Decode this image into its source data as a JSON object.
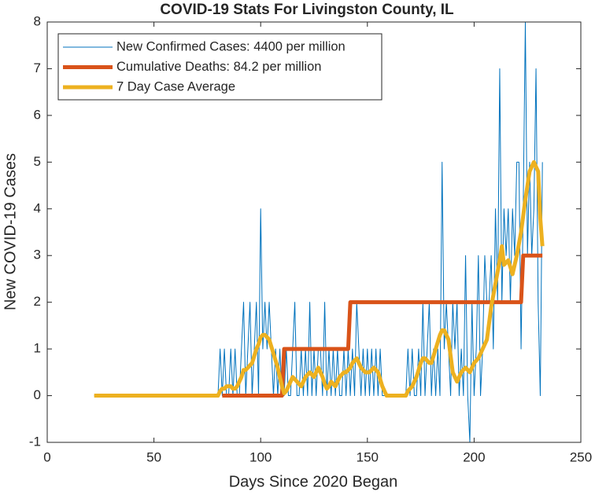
{
  "chart_data": {
    "type": "line",
    "title": "COVID-19 Stats For Livingston County, IL",
    "xlabel": "Days Since 2020 Began",
    "ylabel": "New COVID-19 Cases",
    "xlim": [
      0,
      250
    ],
    "xticks": [
      0,
      50,
      100,
      150,
      200,
      250
    ],
    "ylim": [
      -1,
      8
    ],
    "yticks": [
      -1,
      0,
      1,
      2,
      3,
      4,
      5,
      6,
      7,
      8
    ],
    "grid": false,
    "legend": "upper left",
    "x": [
      22,
      23,
      24,
      25,
      26,
      27,
      28,
      29,
      30,
      31,
      32,
      33,
      34,
      35,
      36,
      37,
      38,
      39,
      40,
      41,
      42,
      43,
      44,
      45,
      46,
      47,
      48,
      49,
      50,
      51,
      52,
      53,
      54,
      55,
      56,
      57,
      58,
      59,
      60,
      61,
      62,
      63,
      64,
      65,
      66,
      67,
      68,
      69,
      70,
      71,
      72,
      73,
      74,
      75,
      76,
      77,
      78,
      79,
      80,
      81,
      82,
      83,
      84,
      85,
      86,
      87,
      88,
      89,
      90,
      91,
      92,
      93,
      94,
      95,
      96,
      97,
      98,
      99,
      100,
      101,
      102,
      103,
      104,
      105,
      106,
      107,
      108,
      109,
      110,
      111,
      112,
      113,
      114,
      115,
      116,
      117,
      118,
      119,
      120,
      121,
      122,
      123,
      124,
      125,
      126,
      127,
      128,
      129,
      130,
      131,
      132,
      133,
      134,
      135,
      136,
      137,
      138,
      139,
      140,
      141,
      142,
      143,
      144,
      145,
      146,
      147,
      148,
      149,
      150,
      151,
      152,
      153,
      154,
      155,
      156,
      157,
      158,
      159,
      160,
      161,
      162,
      163,
      164,
      165,
      166,
      167,
      168,
      169,
      170,
      171,
      172,
      173,
      174,
      175,
      176,
      177,
      178,
      179,
      180,
      181,
      182,
      183,
      184,
      185,
      186,
      187,
      188,
      189,
      190,
      191,
      192,
      193,
      194,
      195,
      196,
      197,
      198,
      199,
      200,
      201,
      202,
      203,
      204,
      205,
      206,
      207,
      208,
      209,
      210,
      211,
      212,
      213,
      214,
      215,
      216,
      217,
      218,
      219,
      220,
      221,
      222,
      223,
      224,
      225,
      226,
      227,
      228,
      229,
      230,
      231,
      232
    ],
    "series": [
      {
        "name": "New Confirmed Cases: 4400 per million",
        "color": "#0072BD",
        "width": 1,
        "values": [
          0,
          0,
          0,
          0,
          0,
          0,
          0,
          0,
          0,
          0,
          0,
          0,
          0,
          0,
          0,
          0,
          0,
          0,
          0,
          0,
          0,
          0,
          0,
          0,
          0,
          0,
          0,
          0,
          0,
          0,
          0,
          0,
          0,
          0,
          0,
          0,
          0,
          0,
          0,
          0,
          0,
          0,
          0,
          0,
          0,
          0,
          0,
          0,
          0,
          0,
          0,
          0,
          0,
          0,
          0,
          0,
          0,
          0,
          0,
          1,
          0,
          1,
          0,
          0,
          1,
          0,
          1,
          0,
          0,
          1,
          2,
          0,
          1,
          2,
          0,
          1,
          2,
          0,
          4,
          1,
          2,
          1,
          2,
          1,
          0,
          1,
          0,
          1,
          0,
          0,
          1,
          0,
          0,
          1,
          2,
          0,
          0,
          1,
          0,
          1,
          0,
          2,
          0,
          1,
          0,
          1,
          1,
          0,
          2,
          0,
          1,
          0,
          1,
          0,
          1,
          0,
          0,
          1,
          0,
          1,
          0,
          1,
          0,
          2,
          1,
          0,
          1,
          0,
          1,
          0,
          1,
          0,
          1,
          0,
          1,
          0,
          0,
          0,
          0,
          0,
          0,
          0,
          0,
          0,
          0,
          0,
          0,
          1,
          0,
          1,
          0,
          0,
          1,
          0,
          2,
          0,
          1,
          2,
          0,
          1,
          0,
          1,
          0,
          5,
          1,
          2,
          1,
          0,
          2,
          1,
          2,
          0,
          1,
          0,
          3,
          0,
          -1,
          2,
          0,
          1,
          3,
          0,
          1,
          3,
          2,
          2,
          3,
          1,
          4,
          2,
          7,
          2,
          4,
          3,
          4,
          2,
          4,
          3,
          5,
          5,
          1,
          4,
          8,
          3,
          5,
          3,
          4,
          7,
          2,
          0,
          5
        ]
      },
      {
        "name": "Cumulative Deaths: 84.2 per million",
        "color": "#D95319",
        "width": 5,
        "values": [
          null,
          null,
          null,
          null,
          null,
          null,
          null,
          null,
          null,
          null,
          null,
          null,
          null,
          null,
          null,
          null,
          null,
          null,
          null,
          null,
          null,
          null,
          null,
          null,
          null,
          null,
          null,
          null,
          null,
          null,
          null,
          null,
          null,
          null,
          null,
          null,
          null,
          null,
          null,
          null,
          null,
          null,
          null,
          null,
          null,
          null,
          null,
          null,
          null,
          null,
          null,
          null,
          null,
          null,
          null,
          null,
          null,
          null,
          null,
          null,
          0,
          0,
          0,
          0,
          0,
          0,
          0,
          0,
          0,
          0,
          0,
          0,
          0,
          0,
          0,
          0,
          0,
          0,
          0,
          0,
          0,
          0,
          0,
          0,
          0,
          0,
          0,
          0,
          0,
          1,
          1,
          1,
          1,
          1,
          1,
          1,
          1,
          1,
          1,
          1,
          1,
          1,
          1,
          1,
          1,
          1,
          1,
          1,
          1,
          1,
          1,
          1,
          1,
          1,
          1,
          1,
          1,
          1,
          1,
          1,
          2,
          2,
          2,
          2,
          2,
          2,
          2,
          2,
          2,
          2,
          2,
          2,
          2,
          2,
          2,
          2,
          2,
          2,
          2,
          2,
          2,
          2,
          2,
          2,
          2,
          2,
          2,
          2,
          2,
          2,
          2,
          2,
          2,
          2,
          2,
          2,
          2,
          2,
          2,
          2,
          2,
          2,
          2,
          2,
          2,
          2,
          2,
          2,
          2,
          2,
          2,
          2,
          2,
          2,
          2,
          2,
          2,
          2,
          2,
          2,
          2,
          2,
          2,
          2,
          2,
          2,
          2,
          2,
          2,
          2,
          2,
          2,
          2,
          2,
          2,
          2,
          2,
          2,
          2,
          2,
          2,
          3,
          3,
          3,
          3,
          3,
          3,
          3,
          3,
          3,
          3
        ]
      },
      {
        "name": "7 Day Case Average",
        "color": "#EDB120",
        "width": 5,
        "values": [
          0,
          0,
          0,
          0,
          0,
          0,
          0,
          0,
          0,
          0,
          0,
          0,
          0,
          0,
          0,
          0,
          0,
          0,
          0,
          0,
          0,
          0,
          0,
          0,
          0,
          0,
          0,
          0,
          0,
          0,
          0,
          0,
          0,
          0,
          0,
          0,
          0,
          0,
          0,
          0,
          0,
          0,
          0,
          0,
          0,
          0,
          0,
          0,
          0,
          0,
          0,
          0,
          0,
          0,
          0,
          0,
          0,
          0,
          0,
          0.1,
          0.15,
          0.15,
          0.2,
          0.2,
          0.2,
          0.15,
          0.15,
          0.2,
          0.3,
          0.4,
          0.55,
          0.55,
          0.6,
          0.65,
          0.7,
          0.85,
          1,
          1.1,
          1.25,
          1.3,
          1.3,
          1.25,
          1.2,
          1.05,
          0.9,
          0.75,
          0.6,
          0.4,
          0.2,
          0.05,
          0.1,
          0.2,
          0.3,
          0.4,
          0.35,
          0.3,
          0.25,
          0.2,
          0.3,
          0.4,
          0.45,
          0.5,
          0.45,
          0.4,
          0.5,
          0.6,
          0.5,
          0.4,
          0.25,
          0.15,
          0.2,
          0.3,
          0.25,
          0.2,
          0.3,
          0.4,
          0.45,
          0.5,
          0.5,
          0.55,
          0.6,
          0.7,
          0.75,
          0.8,
          0.7,
          0.6,
          0.55,
          0.5,
          0.5,
          0.5,
          0.55,
          0.6,
          0.55,
          0.5,
          0.35,
          0.2,
          0.1,
          0,
          0,
          0,
          0,
          0,
          0,
          0,
          0,
          0,
          0,
          0.1,
          0.15,
          0.2,
          0.3,
          0.4,
          0.55,
          0.7,
          0.8,
          0.8,
          0.75,
          0.7,
          0.7,
          0.85,
          1,
          1.15,
          1.3,
          1.4,
          1.4,
          1.3,
          1.2,
          0.85,
          0.5,
          0.4,
          0.3,
          0.4,
          0.5,
          0.55,
          0.6,
          0.55,
          0.5,
          0.6,
          0.7,
          0.75,
          0.8,
          0.9,
          1,
          1.1,
          1.2,
          1.55,
          1.9,
          2.15,
          2.4,
          2.65,
          2.9,
          3.2,
          2.8,
          2.85,
          2.9,
          2.75,
          2.6,
          2.8,
          3,
          3.25,
          3.5,
          3.85,
          4.2,
          4.5,
          4.8,
          4.9,
          5,
          4.9,
          4.8,
          3.8,
          3.2
        ]
      }
    ]
  }
}
